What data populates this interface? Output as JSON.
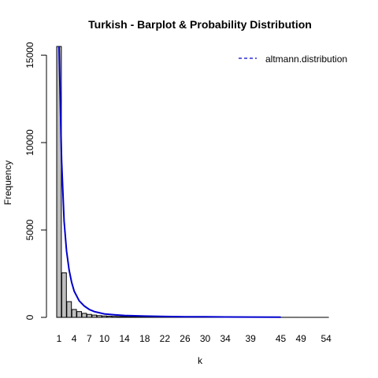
{
  "chart_data": {
    "type": "bar",
    "title": "Turkish - Barplot & Probability Distribution",
    "xlabel": "k",
    "ylabel": "Frequency",
    "ylim": [
      0,
      15500
    ],
    "y_ticks": [
      0,
      5000,
      10000,
      15000
    ],
    "x_tick_labels": [
      "1",
      "4",
      "7",
      "10",
      "14",
      "18",
      "22",
      "26",
      "30",
      "34",
      "39",
      "45",
      "49",
      "54"
    ],
    "categories": [
      "1",
      "2",
      "3",
      "4",
      "5",
      "6",
      "7",
      "8",
      "9",
      "10",
      "11",
      "12",
      "13",
      "14",
      "15",
      "16",
      "17",
      "18",
      "19",
      "20",
      "21",
      "22",
      "23",
      "24",
      "25",
      "26",
      "27",
      "28",
      "29",
      "30",
      "31",
      "32",
      "33",
      "34",
      "35",
      "36",
      "37",
      "38",
      "39",
      "40",
      "41",
      "42",
      "43",
      "44",
      "45",
      "46",
      "47",
      "48",
      "49",
      "50",
      "51",
      "52",
      "53",
      "54"
    ],
    "values": [
      15500,
      2550,
      900,
      450,
      330,
      230,
      170,
      130,
      100,
      80,
      65,
      55,
      45,
      40,
      35,
      30,
      26,
      22,
      20,
      18,
      16,
      14,
      12,
      11,
      10,
      9,
      8,
      8,
      7,
      6,
      6,
      5,
      5,
      4,
      4,
      4,
      3,
      3,
      3,
      3,
      3,
      2,
      2,
      2,
      2,
      2,
      2,
      2,
      1,
      1,
      1,
      1,
      1,
      1
    ],
    "bar_color": "#bebebe",
    "series": [
      {
        "name": "altmann.distribution",
        "type": "line",
        "color": "#0000cc",
        "x": [
          1,
          1.5,
          2,
          2.5,
          3,
          3.5,
          4,
          5,
          6,
          7,
          8,
          10,
          12,
          14,
          18,
          22,
          26,
          30,
          34,
          39,
          45
        ],
        "values": [
          15500,
          9000,
          5500,
          3800,
          2700,
          2000,
          1500,
          950,
          650,
          450,
          330,
          200,
          150,
          110,
          70,
          50,
          38,
          30,
          24,
          18,
          14
        ]
      }
    ],
    "legend": {
      "position": "top-right",
      "entries": [
        "altmann.distribution"
      ]
    },
    "grid": false
  }
}
